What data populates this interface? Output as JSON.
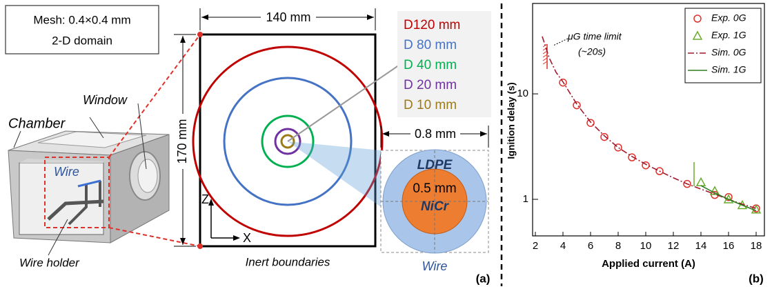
{
  "panel_a": {
    "mesh_lines": [
      "Mesh: 0.4×0.4 mm",
      "2-D domain"
    ],
    "chamber": "Chamber",
    "window": "Window",
    "wire": "Wire",
    "wire_holder": "Wire holder",
    "width_label": "140 mm",
    "height_label": "170 mm",
    "axis_z": "Z",
    "axis_x": "X",
    "boundary_label": "Inert boundaries",
    "diameters": [
      {
        "label": "D120 mm",
        "color": "#c00000"
      },
      {
        "label": "D 80 mm",
        "color": "#4472c4"
      },
      {
        "label": "D 40 mm",
        "color": "#00b050"
      },
      {
        "label": "D 20 mm",
        "color": "#7030a0"
      },
      {
        "label": "D 10 mm",
        "color": "#9c7a16"
      }
    ],
    "zoom_width": "0.8 mm",
    "coating": "LDPE",
    "core_size": "0.5 mm",
    "core": "NiCr",
    "zoom_caption": "Wire",
    "panel_label": "(a)"
  },
  "chart_data": {
    "type": "line",
    "x_label": "Applied current (A)",
    "y_label": "Ignition delay (s)",
    "annotation": "μG time limit",
    "annotation_detail": "(~20s)",
    "panel_label": "(b)",
    "xlim": [
      1.8,
      18.6
    ],
    "xticks": [
      2,
      4,
      6,
      8,
      10,
      12,
      14,
      16,
      18
    ],
    "ylim": [
      0.45,
      72
    ],
    "yticks": [
      1,
      10
    ],
    "log_y": true,
    "legend": "upper right",
    "series": [
      {
        "name": "Exp. 0G",
        "color": "#e0302a",
        "marker": "circle",
        "x": [
          4,
          5,
          6,
          7,
          8,
          9,
          10,
          11,
          13,
          15,
          16,
          18
        ],
        "values": [
          12.8,
          7.8,
          5.3,
          3.9,
          3.1,
          2.5,
          2.1,
          1.85,
          1.4,
          1.1,
          1.05,
          0.82
        ]
      },
      {
        "name": "Exp. 1G",
        "color": "#6aab2e",
        "marker": "triangle",
        "x": [
          14,
          15,
          16,
          17,
          18
        ],
        "values": [
          1.45,
          1.2,
          1.0,
          0.88,
          0.8
        ]
      },
      {
        "name": "Sim. 0G",
        "color": "#a3162b",
        "marker": "dashdot",
        "x": [
          2.5,
          3,
          3.5,
          4,
          5,
          6,
          7,
          8,
          9,
          10,
          11,
          12,
          13,
          14,
          15,
          16,
          17,
          18
        ],
        "values": [
          35,
          22,
          16,
          13,
          8,
          5.4,
          4,
          3.1,
          2.55,
          2.15,
          1.85,
          1.6,
          1.4,
          1.25,
          1.12,
          1.0,
          0.9,
          0.82
        ]
      },
      {
        "name": "Sim. 1G",
        "color": "#2e7d1e",
        "marker": "solid",
        "x": [
          14,
          15,
          16,
          17,
          18
        ],
        "values": [
          1.35,
          1.15,
          1.0,
          0.88,
          0.78
        ]
      }
    ]
  }
}
